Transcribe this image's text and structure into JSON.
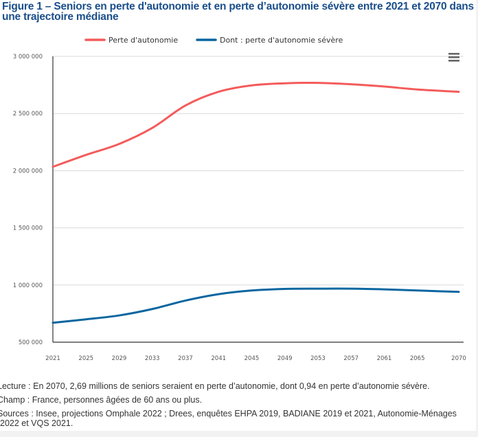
{
  "figure": {
    "title": "Figure 1 – Seniors en perte d'autonomie et en perte d’autonomie sévère entre 2021 et 2070 dans une trajectoire médiane",
    "menu_icon": "hamburger-menu-icon"
  },
  "notes": {
    "lecture": "Lecture : En 2070, 2,69 millions de seniors seraient en perte d’autonomie, dont 0,94 en perte d’autonomie sévère.",
    "champ": "Champ : France, personnes âgées de 60 ans ou plus.",
    "sources": "Sources : Insee, projections Omphale 2022 ; Drees, enquêtes EHPA 2019, BADIANE 2019 et 2021, Autonomie-Ménages 2022 et VQS 2021."
  },
  "chart_data": {
    "type": "line",
    "title": "Figure 1 – Seniors en perte d'autonomie et en perte d’autonomie sévère entre 2021 et 2070 dans une trajectoire médiane",
    "xlabel": "",
    "ylabel": "",
    "x": [
      2021,
      2025,
      2029,
      2033,
      2037,
      2041,
      2045,
      2049,
      2053,
      2057,
      2061,
      2065,
      2070
    ],
    "x_ticks": [
      "2021",
      "2025",
      "2029",
      "2033",
      "2037",
      "2041",
      "2045",
      "2049",
      "2053",
      "2057",
      "2061",
      "2065",
      "2070"
    ],
    "xlim": [
      2021,
      2070
    ],
    "ylim": [
      500000,
      3000000
    ],
    "y_ticks": [
      500000,
      1000000,
      1500000,
      2000000,
      2500000,
      3000000
    ],
    "y_tick_labels": [
      "500 000",
      "1 000 000",
      "1 500 000",
      "2 000 000",
      "2 500 000",
      "3 000 000"
    ],
    "grid": true,
    "legend_position": "top-center",
    "series": [
      {
        "name": "Perte d'autonomie",
        "color": "#f45b5b",
        "values": [
          2034000,
          2138000,
          2234000,
          2374000,
          2570000,
          2690000,
          2746000,
          2764000,
          2768000,
          2756000,
          2736000,
          2710000,
          2690000
        ]
      },
      {
        "name": "Dont : perte d'autonomie sévère",
        "color": "#0a66a0",
        "values": [
          670000,
          700000,
          734000,
          790000,
          864000,
          920000,
          952000,
          966000,
          968000,
          968000,
          962000,
          952000,
          940000
        ]
      }
    ]
  }
}
